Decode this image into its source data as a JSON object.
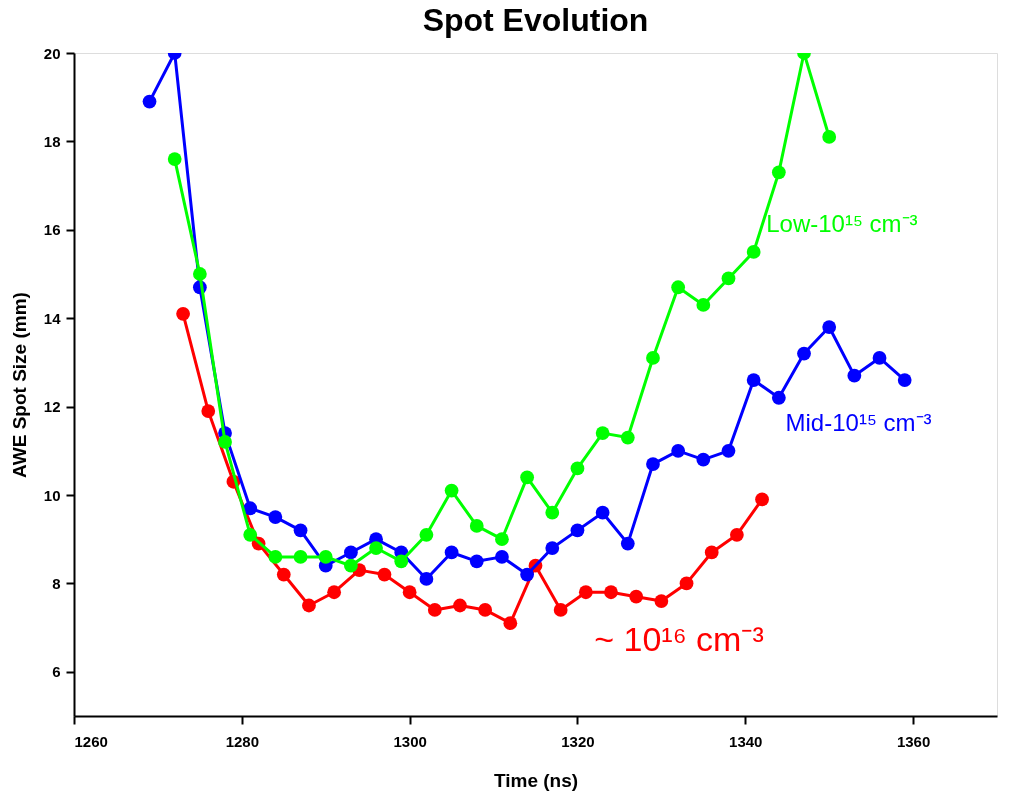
{
  "chart_data": {
    "type": "line",
    "title": "Spot Evolution",
    "xlabel": "Time (ns)",
    "ylabel": "AWE Spot Size (mm)",
    "xlim": [
      1260,
      1370
    ],
    "xticks": [
      1260,
      1280,
      1300,
      1320,
      1340,
      1360
    ],
    "ylim": [
      5,
      20
    ],
    "yticks": [
      6,
      8,
      10,
      12,
      14,
      16,
      18,
      20
    ],
    "grid": false,
    "marker": "circle",
    "line_style": "solid",
    "series": [
      {
        "name": "Low-10¹⁵ cm⁻³",
        "color": "#00ff00",
        "x": [
          1272,
          1275,
          1278,
          1281,
          1284,
          1287,
          1290,
          1293,
          1296,
          1299,
          1302,
          1305,
          1308,
          1311,
          1314,
          1317,
          1320,
          1323,
          1326,
          1329,
          1332,
          1335,
          1338,
          1341,
          1344,
          1347,
          1350
        ],
        "values": [
          17.6,
          15.0,
          11.2,
          9.1,
          8.6,
          8.6,
          8.6,
          8.4,
          8.8,
          8.5,
          9.1,
          10.1,
          9.3,
          9.0,
          10.4,
          9.6,
          10.6,
          11.4,
          11.3,
          13.1,
          14.7,
          14.3,
          14.9,
          15.5,
          17.3,
          20,
          18.1
        ]
      },
      {
        "name": "Mid-10¹⁵ cm⁻³",
        "color": "#0000ff",
        "x": [
          1269,
          1272,
          1275,
          1278,
          1281,
          1284,
          1287,
          1290,
          1293,
          1296,
          1299,
          1302,
          1305,
          1308,
          1311,
          1314,
          1317,
          1320,
          1323,
          1326,
          1329,
          1332,
          1335,
          1338,
          1341,
          1344,
          1347,
          1350,
          1353,
          1356,
          1359
        ],
        "values": [
          18.9,
          20,
          14.7,
          11.4,
          9.7,
          9.5,
          9.2,
          8.4,
          8.7,
          9.0,
          8.7,
          8.1,
          8.7,
          8.5,
          8.6,
          8.2,
          8.8,
          9.2,
          9.6,
          8.9,
          10.7,
          11.0,
          10.8,
          11.0,
          12.6,
          12.2,
          13.2,
          13.8,
          12.7,
          13.1,
          12.6
        ]
      },
      {
        "name": "~ 10¹⁶ cm⁻³",
        "color": "#ff0000",
        "x": [
          1273,
          1276,
          1279,
          1282,
          1285,
          1288,
          1291,
          1294,
          1297,
          1300,
          1303,
          1306,
          1309,
          1312,
          1315,
          1318,
          1321,
          1324,
          1327,
          1330,
          1333,
          1336,
          1339,
          1342
        ],
        "values": [
          14.1,
          11.9,
          10.3,
          8.9,
          8.2,
          7.5,
          7.8,
          8.3,
          8.2,
          7.8,
          7.4,
          7.5,
          7.4,
          7.1,
          8.4,
          7.4,
          7.8,
          7.8,
          7.7,
          7.6,
          8.0,
          8.7,
          9.1,
          9.9
        ]
      }
    ]
  }
}
